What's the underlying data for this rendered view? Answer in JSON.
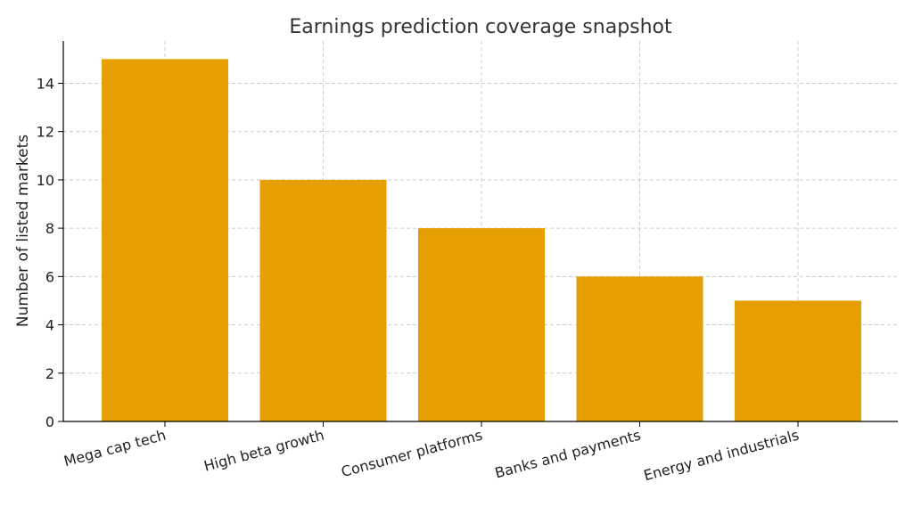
{
  "chart_data": {
    "type": "bar",
    "title": "Earnings prediction coverage snapshot",
    "xlabel": "",
    "ylabel": "Number of listed markets",
    "categories": [
      "Mega cap tech",
      "High beta growth",
      "Consumer platforms",
      "Banks and payments",
      "Energy and industrials"
    ],
    "values": [
      15,
      10,
      8,
      6,
      5
    ],
    "ylim": [
      0,
      15.75
    ],
    "yticks": [
      0,
      2,
      4,
      6,
      8,
      10,
      12,
      14
    ],
    "grid": true,
    "bar_color": "#E69F00"
  }
}
